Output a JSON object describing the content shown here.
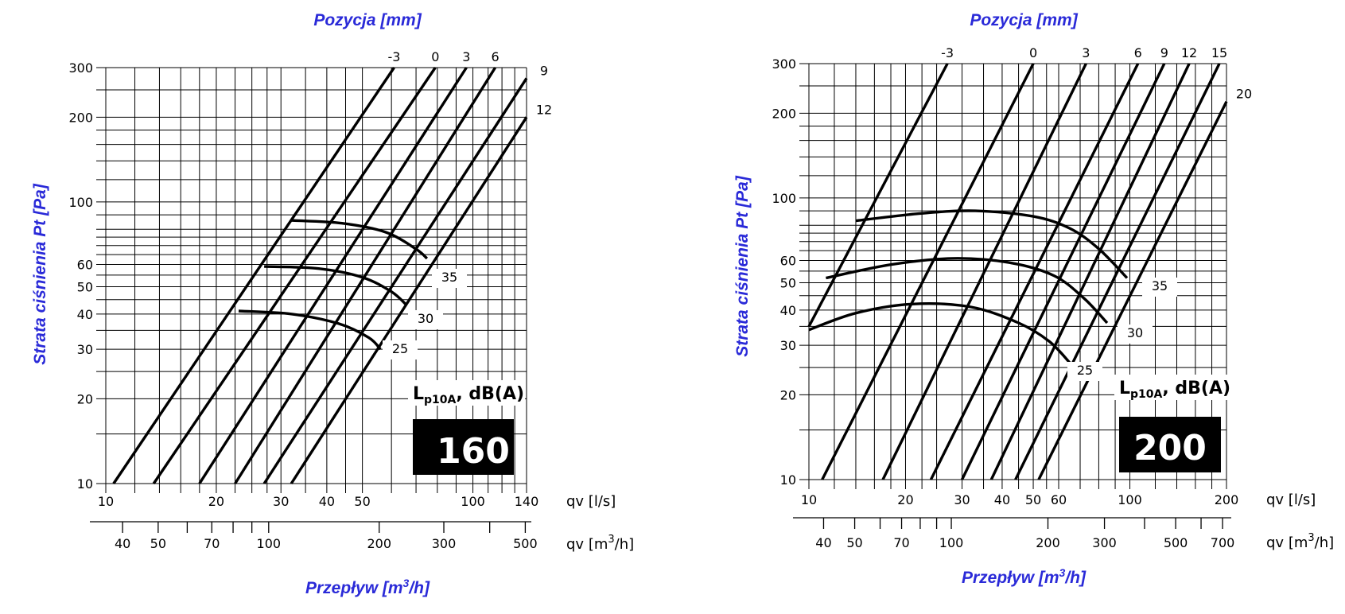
{
  "chart_data": [
    {
      "type": "line",
      "size_label": "160",
      "title": "Pozycja [mm]",
      "ylabel": "Strata ciśnienia Pt [Pa]",
      "xlabel": "Przepływ [m3/h]",
      "x_unit_ls": "qv [l/s]",
      "x_unit_m3h_prefix": "qv",
      "x_unit_m3h": "[m3/h]",
      "legend_label": "Lp10A, dB(A)",
      "legend_main": "L",
      "legend_sub": "p10A",
      "legend_rest": ", dB(A)",
      "x_scale": "log",
      "y_scale": "log",
      "xlim_ls": [
        10,
        140
      ],
      "ylim": [
        10,
        300
      ],
      "x_ticks_ls": [
        "10",
        "20",
        "30",
        "40",
        "50",
        "100",
        "140"
      ],
      "x_ticks_m3h": [
        "40",
        "50",
        "70",
        "100",
        "200",
        "300",
        "500"
      ],
      "y_ticks": [
        "10",
        "20",
        "30",
        "40",
        "50",
        "60",
        "100",
        "200",
        "300"
      ],
      "series": [
        {
          "name": "-3",
          "x": [
            10.5,
            61
          ],
          "y": [
            10,
            300
          ]
        },
        {
          "name": "0",
          "x": [
            13.5,
            79
          ],
          "y": [
            10,
            300
          ]
        },
        {
          "name": "3",
          "x": [
            18,
            96
          ],
          "y": [
            10,
            300
          ]
        },
        {
          "name": "6",
          "x": [
            22.5,
            115
          ],
          "y": [
            10,
            300
          ]
        },
        {
          "name": "9",
          "x": [
            27,
            140
          ],
          "y": [
            10,
            275
          ]
        },
        {
          "name": "12",
          "x": [
            32,
            140
          ],
          "y": [
            10,
            200
          ]
        }
      ],
      "noise_curves": [
        {
          "name": "35",
          "x": [
            32,
            44,
            58,
            70,
            75
          ],
          "y": [
            86,
            84,
            78,
            68,
            63
          ]
        },
        {
          "name": "30",
          "x": [
            27,
            38,
            50,
            60,
            66
          ],
          "y": [
            59,
            58,
            54,
            48,
            43
          ]
        },
        {
          "name": "25",
          "x": [
            23,
            32,
            43,
            52,
            56
          ],
          "y": [
            41,
            40,
            37,
            33,
            30
          ]
        }
      ]
    },
    {
      "type": "line",
      "size_label": "200",
      "title": "Pozycja [mm]",
      "ylabel": "Strata ciśnienia Pt [Pa]",
      "xlabel": "Przepływ [m3/h]",
      "x_unit_ls": "qv [l/s]",
      "x_unit_m3h_prefix": "qv",
      "x_unit_m3h": "[m3/h]",
      "legend_label": "Lp10A, dB(A)",
      "legend_main": "L",
      "legend_sub": "p10A",
      "legend_rest": ", dB(A)",
      "x_scale": "log",
      "y_scale": "log",
      "xlim_ls": [
        10,
        200
      ],
      "ylim": [
        10,
        300
      ],
      "x_ticks_ls": [
        "10",
        "20",
        "30",
        "40",
        "50",
        "60",
        "100",
        "200"
      ],
      "x_ticks_m3h": [
        "40",
        "50",
        "70",
        "100",
        "200",
        "300",
        "500",
        "700"
      ],
      "y_ticks": [
        "10",
        "20",
        "30",
        "40",
        "50",
        "60",
        "100",
        "200",
        "300"
      ],
      "series": [
        {
          "name": "-3",
          "x": [
            10,
            27
          ],
          "y": [
            35,
            300
          ]
        },
        {
          "name": "0",
          "x": [
            11,
            50
          ],
          "y": [
            10,
            300
          ]
        },
        {
          "name": "3",
          "x": [
            17,
            73
          ],
          "y": [
            10,
            300
          ]
        },
        {
          "name": "6",
          "x": [
            24,
            106
          ],
          "y": [
            10,
            300
          ]
        },
        {
          "name": "9",
          "x": [
            30,
            128
          ],
          "y": [
            10,
            300
          ]
        },
        {
          "name": "12",
          "x": [
            37,
            153
          ],
          "y": [
            10,
            300
          ]
        },
        {
          "name": "15",
          "x": [
            44,
            190
          ],
          "y": [
            10,
            300
          ]
        },
        {
          "name": "20",
          "x": [
            52,
            200
          ],
          "y": [
            10,
            220
          ]
        }
      ],
      "noise_curves": [
        {
          "name": "35",
          "x": [
            14,
            22,
            33,
            50,
            65,
            80,
            98
          ],
          "y": [
            83,
            88,
            90,
            86,
            78,
            66,
            52
          ]
        },
        {
          "name": "30",
          "x": [
            11.3,
            18,
            28,
            42,
            58,
            72,
            85
          ],
          "y": [
            52,
            58,
            61,
            59,
            53,
            44,
            36
          ]
        },
        {
          "name": "25",
          "x": [
            10,
            14,
            21,
            32,
            45,
            56,
            65
          ],
          "y": [
            34,
            39,
            42,
            41,
            36,
            31,
            26
          ]
        }
      ]
    }
  ]
}
